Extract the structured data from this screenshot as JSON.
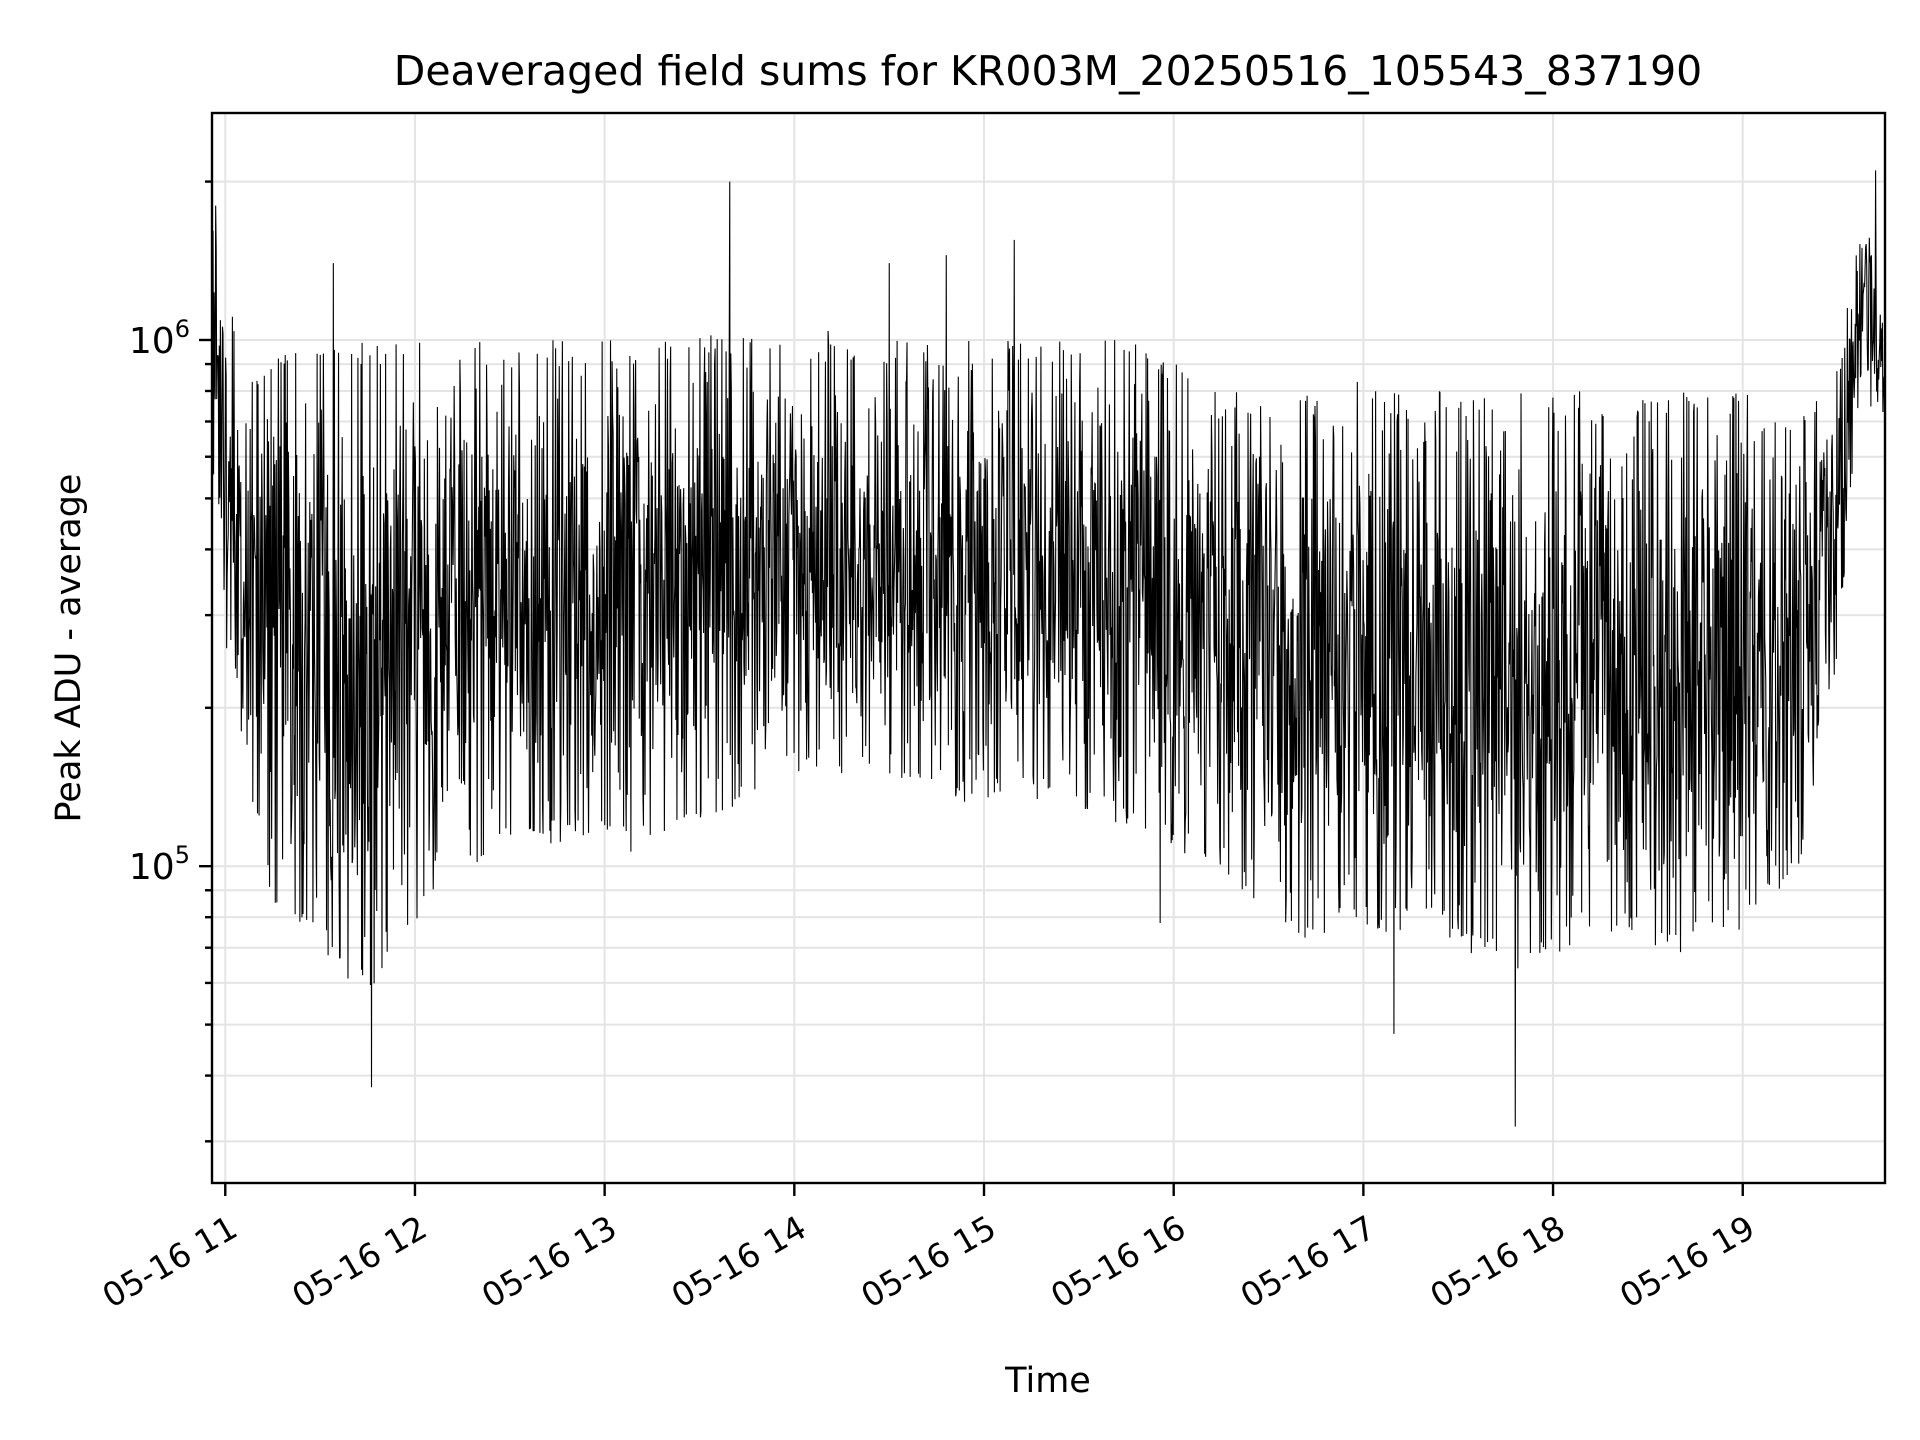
{
  "chart_data": {
    "type": "line",
    "title": "Deaveraged field sums for KR003M_20250516_105543_837190",
    "xlabel": "Time",
    "ylabel": "Peak ADU - average",
    "yscale": "log",
    "xlim_hours": [
      10.93,
      19.75
    ],
    "ylim": [
      25000,
      2700000
    ],
    "x_ticks": [
      {
        "hour": 11,
        "label": "05-16 11"
      },
      {
        "hour": 12,
        "label": "05-16 12"
      },
      {
        "hour": 13,
        "label": "05-16 13"
      },
      {
        "hour": 14,
        "label": "05-16 14"
      },
      {
        "hour": 15,
        "label": "05-16 15"
      },
      {
        "hour": 16,
        "label": "05-16 16"
      },
      {
        "hour": 17,
        "label": "05-16 17"
      },
      {
        "hour": 18,
        "label": "05-16 18"
      },
      {
        "hour": 19,
        "label": "05-16 19"
      }
    ],
    "y_ticks": [
      {
        "value": 100000,
        "base": "10",
        "exp": "5"
      },
      {
        "value": 1000000,
        "base": "10",
        "exp": "6"
      }
    ],
    "grid": true,
    "line_color": "#000000",
    "series": [
      {
        "envelope": [
          {
            "hour": 10.93,
            "low": 380000,
            "high": 1800000
          },
          {
            "hour": 11.1,
            "low": 150000,
            "high": 850000
          },
          {
            "hour": 11.25,
            "low": 85000,
            "high": 1000000
          },
          {
            "hour": 11.5,
            "low": 70000,
            "high": 1000000
          },
          {
            "hour": 11.75,
            "low": 55000,
            "high": 1000000
          },
          {
            "hour": 11.9,
            "low": 70000,
            "high": 1000000
          },
          {
            "hour": 12.1,
            "low": 90000,
            "high": 1000000
          },
          {
            "hour": 12.5,
            "low": 110000,
            "high": 1000000
          },
          {
            "hour": 12.9,
            "low": 110000,
            "high": 1000000
          },
          {
            "hour": 13.3,
            "low": 110000,
            "high": 1000000
          },
          {
            "hour": 13.65,
            "low": 120000,
            "high": 1050000
          },
          {
            "hour": 14.0,
            "low": 150000,
            "high": 1000000
          },
          {
            "hour": 14.5,
            "low": 150000,
            "high": 1000000
          },
          {
            "hour": 14.9,
            "low": 130000,
            "high": 1000000
          },
          {
            "hour": 15.3,
            "low": 140000,
            "high": 1000000
          },
          {
            "hour": 15.7,
            "low": 120000,
            "high": 1000000
          },
          {
            "hour": 15.95,
            "low": 110000,
            "high": 950000
          },
          {
            "hour": 16.2,
            "low": 100000,
            "high": 800000
          },
          {
            "hour": 16.6,
            "low": 70000,
            "high": 800000
          },
          {
            "hour": 17.0,
            "low": 75000,
            "high": 800000
          },
          {
            "hour": 17.4,
            "low": 75000,
            "high": 800000
          },
          {
            "hour": 17.8,
            "low": 60000,
            "high": 800000
          },
          {
            "hour": 18.2,
            "low": 75000,
            "high": 800000
          },
          {
            "hour": 18.6,
            "low": 70000,
            "high": 800000
          },
          {
            "hour": 19.0,
            "low": 75000,
            "high": 800000
          },
          {
            "hour": 19.3,
            "low": 100000,
            "high": 700000
          },
          {
            "hour": 19.5,
            "low": 250000,
            "high": 900000
          },
          {
            "hour": 19.62,
            "low": 800000,
            "high": 1800000
          },
          {
            "hour": 19.75,
            "low": 700000,
            "high": 1400000
          }
        ],
        "spikes": [
          {
            "hour": 10.95,
            "value": 1800000
          },
          {
            "hour": 11.57,
            "value": 1400000
          },
          {
            "hour": 11.77,
            "value": 38000
          },
          {
            "hour": 13.66,
            "value": 2000000
          },
          {
            "hour": 14.5,
            "value": 1400000
          },
          {
            "hour": 14.8,
            "value": 1450000
          },
          {
            "hour": 15.16,
            "value": 1550000
          },
          {
            "hour": 15.93,
            "value": 78000
          },
          {
            "hour": 17.16,
            "value": 48000
          },
          {
            "hour": 17.8,
            "value": 32000
          },
          {
            "hour": 19.7,
            "value": 2100000
          }
        ]
      }
    ]
  }
}
